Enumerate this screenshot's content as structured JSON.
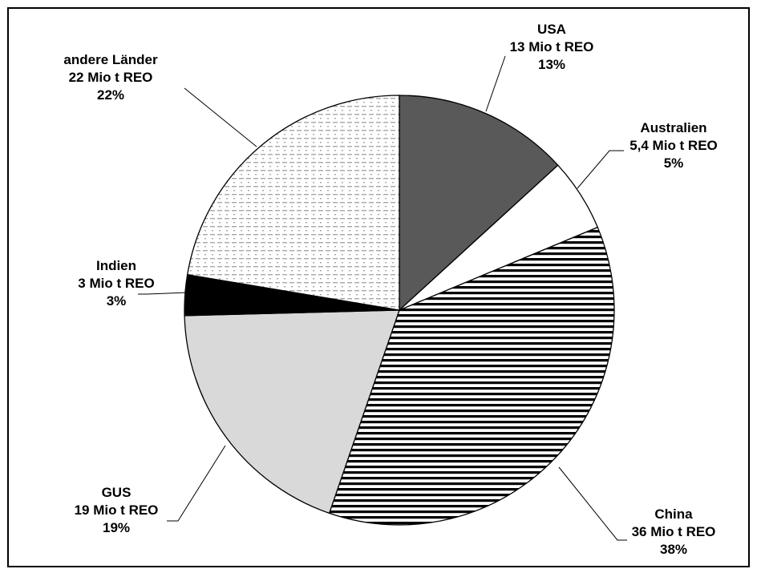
{
  "chart_data": {
    "type": "pie",
    "slices": [
      {
        "category": "USA",
        "amount": "13 Mio t REO",
        "value": 13,
        "percent": "13%",
        "pattern": "solid",
        "color": "#595959"
      },
      {
        "category": "Australien",
        "amount": "5,4 Mio t REO",
        "value": 5.4,
        "percent": "5%",
        "pattern": "solid",
        "color": "#ffffff"
      },
      {
        "category": "China",
        "amount": "36 Mio t REO",
        "value": 36,
        "percent": "38%",
        "pattern": "horizontal-stripes",
        "color": "#000000"
      },
      {
        "category": "GUS",
        "amount": "19 Mio t REO",
        "value": 19,
        "percent": "19%",
        "pattern": "solid",
        "color": "#d9d9d9"
      },
      {
        "category": "Indien",
        "amount": "3 Mio t REO",
        "value": 3,
        "percent": "3%",
        "pattern": "solid",
        "color": "#000000"
      },
      {
        "category": "andere Länder",
        "amount": "22 Mio t REO",
        "value": 22,
        "percent": "22%",
        "pattern": "dashed-dots",
        "color": "#a6a6a6"
      }
    ],
    "start_angle": "12 o'clock",
    "direction": "clockwise",
    "legend": "none"
  }
}
